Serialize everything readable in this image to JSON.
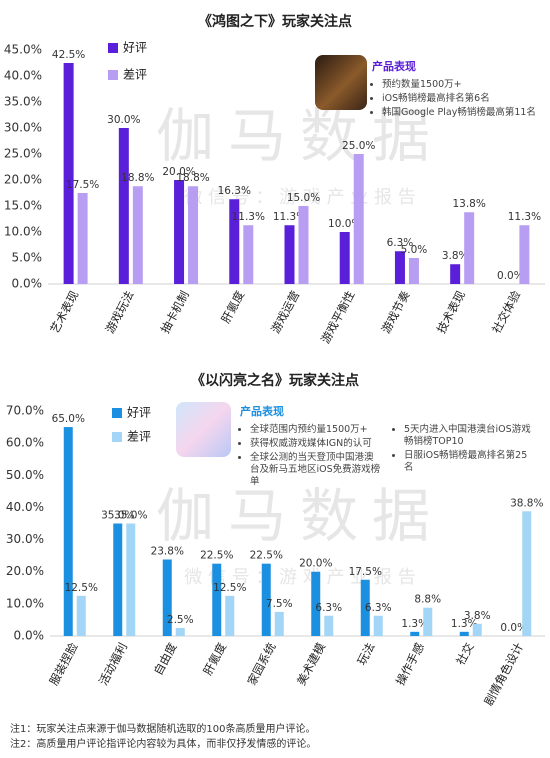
{
  "chart_data": [
    {
      "type": "bar",
      "title": "《鸿图之下》玩家关注点",
      "categories": [
        "艺术表现",
        "游戏玩法",
        "抽卡机制",
        "肝氪度",
        "游戏运营",
        "游戏平衡性",
        "游戏节奏",
        "技术表现",
        "社交体验"
      ],
      "series": [
        {
          "name": "好评",
          "color": "#5a1fd8",
          "values": [
            42.5,
            30.0,
            20.0,
            16.3,
            11.3,
            10.0,
            6.3,
            3.8,
            0.0
          ],
          "value_labels": [
            "42.5%",
            "30.0%",
            "20.0%",
            "16.3%",
            "11.3%",
            "10.0%",
            "6.3%",
            "3.8%",
            "0.0%"
          ]
        },
        {
          "name": "差评",
          "color": "#b89ef2",
          "values": [
            17.5,
            18.8,
            18.8,
            11.3,
            15.0,
            25.0,
            5.0,
            13.8,
            11.3
          ],
          "value_labels": [
            "17.5%",
            "18.8%",
            "18.8%",
            "11.3%",
            "15.0%",
            "25.0%",
            "5.0%",
            "13.8%",
            "11.3%"
          ]
        }
      ],
      "ylim": [
        0,
        45
      ],
      "yticks": [
        {
          "value": 0,
          "label": "0.0%"
        },
        {
          "value": 5,
          "label": "5.0%"
        },
        {
          "value": 10,
          "label": "10.0%"
        },
        {
          "value": 15,
          "label": "15.0%"
        },
        {
          "value": 20,
          "label": "20.0%"
        },
        {
          "value": 25,
          "label": "25.0%"
        },
        {
          "value": 30,
          "label": "30.0%"
        },
        {
          "value": 35,
          "label": "35.0%"
        },
        {
          "value": 40,
          "label": "40.0%"
        },
        {
          "value": 45,
          "label": "45.0%"
        }
      ],
      "grid": false,
      "watermark": "伽马数据",
      "watermark_sub": "微 信 号 ： 游 戏 产 业 报 告",
      "info": {
        "title": "产品表现",
        "color": "#5a1fd8",
        "columns": [
          [
            "预约数量1500万+",
            "iOS畅销榜最高排名第6名",
            "韩国Google Play畅销榜最高第11名"
          ]
        ]
      }
    },
    {
      "type": "bar",
      "title": "《以闪亮之名》玩家关注点",
      "categories": [
        "服装捏脸",
        "活动福利",
        "自由度",
        "肝氪度",
        "家园系统",
        "美术建模",
        "玩法",
        "操作手感",
        "社交",
        "剧情角色设计"
      ],
      "series": [
        {
          "name": "好评",
          "color": "#1b8fe0",
          "values": [
            65.0,
            35.0,
            23.8,
            22.5,
            22.5,
            20.0,
            17.5,
            1.3,
            1.3,
            0.0
          ],
          "value_labels": [
            "65.0%",
            "35.0%",
            "23.8%",
            "22.5%",
            "22.5%",
            "20.0%",
            "17.5%",
            "1.3%",
            "1.3%",
            "0.0%"
          ]
        },
        {
          "name": "差评",
          "color": "#a3d5f6",
          "values": [
            12.5,
            35.0,
            2.5,
            12.5,
            7.5,
            6.3,
            6.3,
            8.8,
            3.8,
            38.8
          ],
          "value_labels": [
            "12.5%",
            "35.0%",
            "2.5%",
            "12.5%",
            "7.5%",
            "6.3%",
            "6.3%",
            "8.8%",
            "3.8%",
            "38.8%"
          ]
        }
      ],
      "ylim": [
        0,
        70
      ],
      "yticks": [
        {
          "value": 0,
          "label": "0.0%"
        },
        {
          "value": 10,
          "label": "10.0%"
        },
        {
          "value": 20,
          "label": "20.0%"
        },
        {
          "value": 30,
          "label": "30.0%"
        },
        {
          "value": 40,
          "label": "40.0%"
        },
        {
          "value": 50,
          "label": "50.0%"
        },
        {
          "value": 60,
          "label": "60.0%"
        },
        {
          "value": 70,
          "label": "70.0%"
        }
      ],
      "grid": false,
      "watermark": "伽马数据",
      "watermark_sub": "微 信 号 ： 游 戏 产 业 报 告",
      "info": {
        "title": "产品表现",
        "color": "#1b8fe0",
        "columns": [
          [
            "全球范围内预约量1500万+",
            "获得权威游戏媒体IGN的认可",
            "全球公测的当天登顶中国港澳台及新马五地区iOS免费游戏榜单"
          ],
          [
            "5天内进入中国港澳台iOS游戏畅销榜TOP10",
            "日服iOS畅销榜最高排名第25名"
          ]
        ]
      }
    }
  ],
  "notes": [
    "注1：玩家关注点来源于伽马数据随机选取的100条高质量用户评论。",
    "注2：高质量用户评论指评论内容较为具体，而非仅抒发情感的评论。"
  ]
}
